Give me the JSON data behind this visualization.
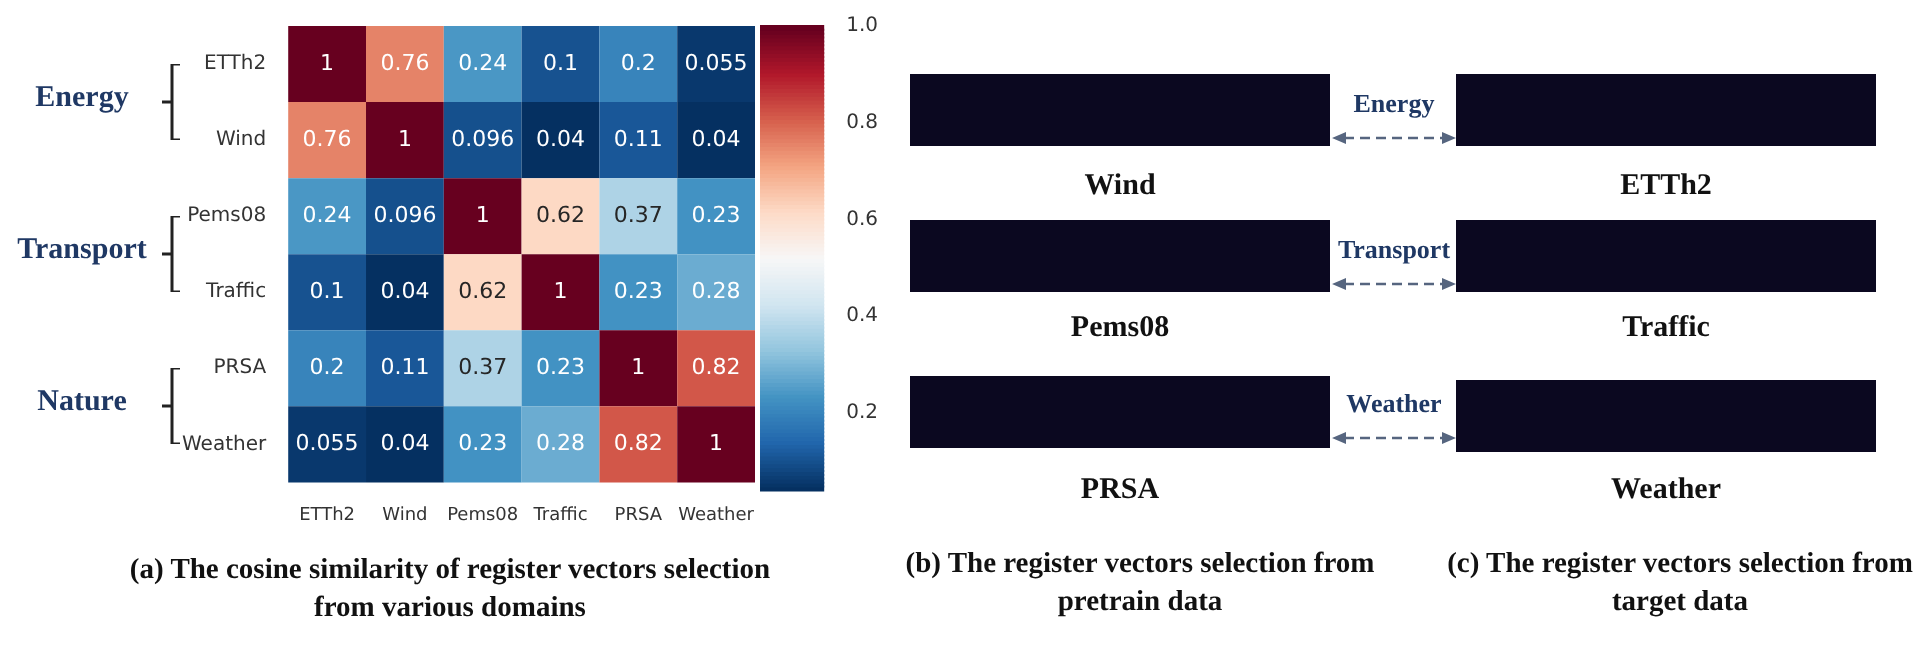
{
  "chart_data": [
    {
      "type": "heatmap",
      "title": "(a) The cosine similarity of register vectors selection from various domains",
      "categories": [
        "ETTh2",
        "Wind",
        "Pems08",
        "Traffic",
        "PRSA",
        "Weather"
      ],
      "y_categories": [
        "ETTh2",
        "Wind",
        "Pems08",
        "Traffic",
        "PRSA",
        "Weather"
      ],
      "cells": [
        [
          1,
          0.76,
          0.24,
          0.1,
          0.2,
          0.055
        ],
        [
          0.76,
          1,
          0.096,
          0.04,
          0.11,
          0.04
        ],
        [
          0.24,
          0.096,
          1,
          0.62,
          0.37,
          0.23
        ],
        [
          0.1,
          0.04,
          0.62,
          1,
          0.23,
          0.28
        ],
        [
          0.2,
          0.11,
          0.37,
          0.23,
          1,
          0.82
        ],
        [
          0.055,
          0.04,
          0.23,
          0.28,
          0.82,
          1
        ]
      ],
      "data_labels": true,
      "clim": [
        0.04,
        1
      ],
      "cticks": [
        0.2,
        0.4,
        0.6,
        0.8,
        {
          "value": 1,
          "label": "1.0"
        }
      ],
      "annotations": [
        "Energy",
        "Transport",
        "Nature"
      ]
    },
    {
      "type": "other",
      "annotations": [
        "Wind",
        "ETTh2",
        "Pems08",
        "Traffic",
        "PRSA",
        "Weather",
        "Energy",
        "Transport",
        "Weather",
        "(b) The register vectors selection from pretrain data",
        "(c) The register vectors selection from target data"
      ]
    }
  ]
}
